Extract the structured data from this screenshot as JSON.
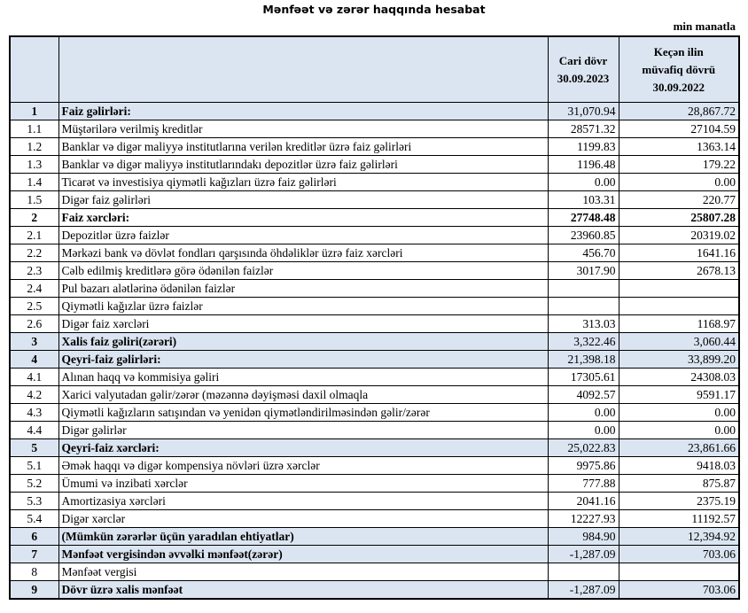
{
  "title": "Mənfəət və zərər haqqında hesabat",
  "unit": "min manatla",
  "header": {
    "col_current_line1": "Cari dövr",
    "col_current_line2": "30.09.2023",
    "col_prev_line1": "Keçən ilin",
    "col_prev_line2": "müvafiq dövrü",
    "col_prev_line3": "30.09.2022"
  },
  "colors": {
    "header_fill": "#dbe5f1",
    "total_fill": "#dbe5f1"
  },
  "rows": [
    {
      "num": "1",
      "label": "Faiz gəlirləri:",
      "current": "31,070.94",
      "previous": "28,867.72",
      "style": "total"
    },
    {
      "num": "1.1",
      "label": "Müştərilərə verilmiş kreditlər",
      "current": "28571.32",
      "previous": "27104.59",
      "style": ""
    },
    {
      "num": "1.2",
      "label": "Banklar və digər maliyyə institutlarına verilən kreditlər üzrə faiz gəlirləri",
      "current": "1199.83",
      "previous": "1363.14",
      "style": ""
    },
    {
      "num": "1.3",
      "label": "Banklar və digər maliyyə institutlarındakı depozitlər üzrə faiz gəlirləri",
      "current": "1196.48",
      "previous": "179.22",
      "style": ""
    },
    {
      "num": "1.4",
      "label": "Ticarət və investisiya qiymətli kağızları üzrə faiz gəlirləri",
      "current": "0.00",
      "previous": "0.00",
      "style": ""
    },
    {
      "num": "1.5",
      "label": "Digər faiz gəlirləri",
      "current": "103.31",
      "previous": "220.77",
      "style": ""
    },
    {
      "num": "2",
      "label": "Faiz xərcləri:",
      "current": "27748.48",
      "previous": "25807.28",
      "style": "bold"
    },
    {
      "num": "2.1",
      "label": "Depozitlər üzrə faizlər",
      "current": "23960.85",
      "previous": "20319.02",
      "style": ""
    },
    {
      "num": "2.2",
      "label": "Mərkəzi bank və dövlət fondları qarşısında öhdəliklər üzrə faiz xərcləri",
      "current": "456.70",
      "previous": "1641.16",
      "style": ""
    },
    {
      "num": "2.3",
      "label": "Cəlb edilmiş kreditlərə görə ödənilən faizlər",
      "current": "3017.90",
      "previous": "2678.13",
      "style": ""
    },
    {
      "num": "2.4",
      "label": "Pul bazarı alətlərinə ödənilən faizlər",
      "current": "",
      "previous": "",
      "style": ""
    },
    {
      "num": "2.5",
      "label": "Qiymətli kağızlar üzrə faizlər",
      "current": "",
      "previous": "",
      "style": ""
    },
    {
      "num": "2.6",
      "label": "Digər faiz xərcləri",
      "current": "313.03",
      "previous": "1168.97",
      "style": ""
    },
    {
      "num": "3",
      "label": "Xalis faiz gəliri(zərəri)",
      "current": "3,322.46",
      "previous": "3,060.44",
      "style": "total"
    },
    {
      "num": "4",
      "label": "Qeyri-faiz gəlirləri:",
      "current": "21,398.18",
      "previous": "33,899.20",
      "style": "total"
    },
    {
      "num": "4.1",
      "label": "Alınan haqq və kommisiya gəliri",
      "current": "17305.61",
      "previous": "24308.03",
      "style": ""
    },
    {
      "num": "4.2",
      "label": "Xarici valyutadan gəlir/zərər (məzənnə dəyişməsi daxil olmaqla",
      "current": "4092.57",
      "previous": "9591.17",
      "style": ""
    },
    {
      "num": "4.3",
      "label": "Qiymətli kağızların satışından və yenidən qiymətləndirilməsindən gəlir/zərər",
      "current": "0.00",
      "previous": "0.00",
      "style": ""
    },
    {
      "num": "4.4",
      "label": "Digər gəlirlər",
      "current": "0.00",
      "previous": "0.00",
      "style": ""
    },
    {
      "num": "5",
      "label": "Qeyri-faiz xərcləri:",
      "current": "25,022.83",
      "previous": "23,861.66",
      "style": "total"
    },
    {
      "num": "5.1",
      "label": "Əmək haqqı və digər kompensiya növləri üzrə xərclər",
      "current": "9975.86",
      "previous": "9418.03",
      "style": ""
    },
    {
      "num": "5.2",
      "label": "Ümumi və inzibati xərclər",
      "current": "777.88",
      "previous": "875.87",
      "style": ""
    },
    {
      "num": "5.3",
      "label": "Amortizasiya xərcləri",
      "current": "2041.16",
      "previous": "2375.19",
      "style": ""
    },
    {
      "num": "5.4",
      "label": "Digər xərclər",
      "current": "12227.93",
      "previous": "11192.57",
      "style": ""
    },
    {
      "num": "6",
      "label": "(Mümkün zərərlər üçün yaradılan ehtiyatlar)",
      "current": "984.90",
      "previous": "12,394.92",
      "style": "total"
    },
    {
      "num": "7",
      "label": "Mənfəət vergisindən əvvəlki mənfəət(zərər)",
      "current": "-1,287.09",
      "previous": "703.06",
      "style": "total"
    },
    {
      "num": "8",
      "label": "Mənfəət vergisi",
      "current": "",
      "previous": "",
      "style": ""
    },
    {
      "num": "9",
      "label": "Dövr üzrə xalis mənfəət",
      "current": "-1,287.09",
      "previous": "703.06",
      "style": "total"
    }
  ]
}
